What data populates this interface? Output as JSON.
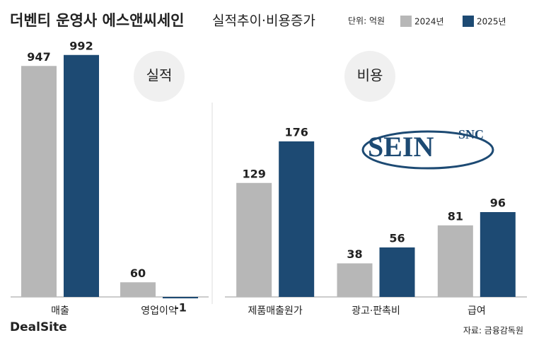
{
  "header": {
    "title": "더벤티 운영사 에스앤씨세인",
    "subtitle": "실적추이·비용증가",
    "unit": "단위: 억원"
  },
  "chart_data": [
    {
      "type": "bar",
      "label": "실적",
      "categories": [
        "매출",
        "영업이익"
      ],
      "series": [
        {
          "name": "2024년",
          "color": "#b7b7b7",
          "values": [
            947,
            60
          ]
        },
        {
          "name": "2025년",
          "color": "#1d4a73",
          "values": [
            992,
            -1
          ]
        }
      ],
      "ylim": [
        0,
        1000
      ]
    },
    {
      "type": "bar",
      "label": "비용",
      "categories": [
        "제품매출원가",
        "광고·판촉비",
        "급여"
      ],
      "series": [
        {
          "name": "2024년",
          "color": "#b7b7b7",
          "values": [
            129,
            38,
            81
          ]
        },
        {
          "name": "2025년",
          "color": "#1d4a73",
          "values": [
            176,
            56,
            96
          ]
        }
      ],
      "ylim": [
        0,
        200
      ]
    }
  ],
  "logo": {
    "main": "SEIN",
    "sup": "SNC"
  },
  "footer": {
    "brand": "DealSite",
    "source": "자료: 금융감독원"
  }
}
